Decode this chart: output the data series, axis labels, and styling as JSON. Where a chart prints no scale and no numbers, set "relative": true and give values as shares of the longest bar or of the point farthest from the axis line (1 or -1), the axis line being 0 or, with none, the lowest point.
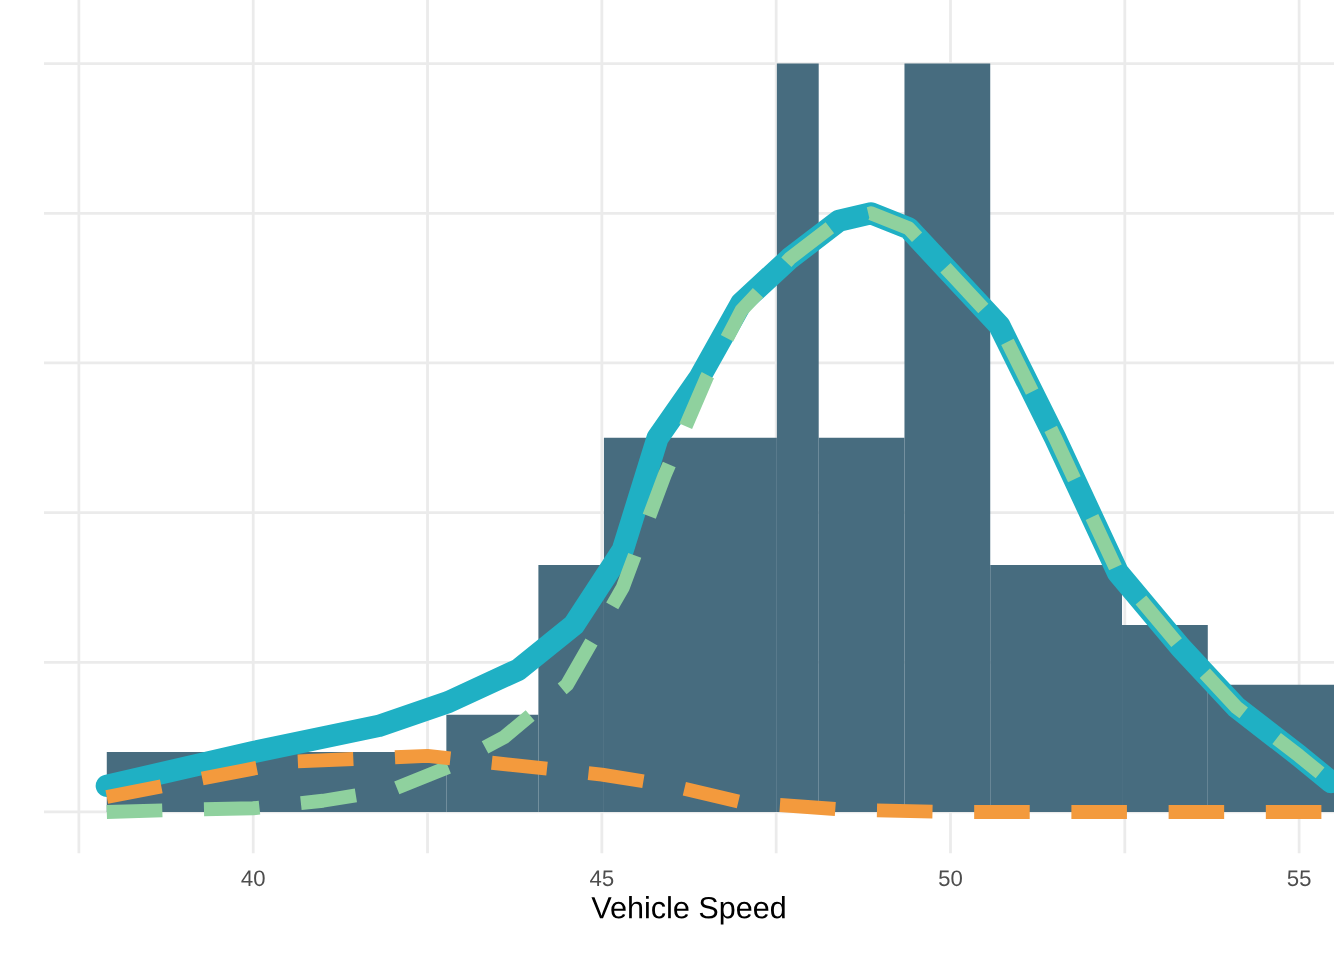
{
  "chart_data": {
    "type": "histogram",
    "relative": true,
    "xlabel": "Vehicle Speed",
    "bins": [
      37.9,
      42.77,
      44.09,
      45.03,
      47.51,
      48.11,
      49.34,
      50.57,
      52.46,
      53.69,
      55.5
    ],
    "values": [
      0.08,
      0.13,
      0.33,
      0.5,
      1,
      0.5,
      1,
      0.33,
      0.25,
      0.17
    ],
    "color": "#476c7f",
    "xlim": [
      37.0,
      55.5
    ],
    "xticks": [
      {
        "value": 37.5,
        "label": null
      },
      40,
      {
        "value": 42.5,
        "label": null
      },
      45,
      {
        "value": 47.5,
        "label": null
      },
      50,
      {
        "value": 52.5,
        "label": null
      },
      55
    ],
    "grid": true,
    "series": [
      {
        "type": "line",
        "color": "#1fb0c4",
        "line_style": "solid",
        "x": [
          37.9,
          40,
          41.8,
          42.8,
          43.8,
          44.6,
          45.3,
          45.8,
          46.4,
          47.0,
          47.7,
          48.4,
          48.86,
          49.4,
          50.1,
          50.7,
          51.5,
          52.4,
          53.3,
          54.1,
          55.0,
          55.46
        ],
        "values": [
          0.035,
          0.08,
          0.115,
          0.147,
          0.19,
          0.25,
          0.35,
          0.5,
          0.58,
          0.68,
          0.74,
          0.79,
          0.8,
          0.78,
          0.71,
          0.65,
          0.5,
          0.32,
          0.22,
          0.14,
          0.075,
          0.04
        ]
      },
      {
        "type": "line",
        "color": "#8fd19e",
        "line_style": "dashed",
        "x": [
          37.9,
          39,
          40,
          41,
          42,
          42.8,
          43.6,
          44.5,
          45.3,
          45.9,
          46.5,
          47.0,
          47.7,
          48.4,
          48.86,
          49.4,
          50.1,
          50.7,
          51.5,
          52.4,
          53.3,
          54.1,
          55.0,
          55.46
        ],
        "values": [
          0.0,
          0.003,
          0.005,
          0.015,
          0.03,
          0.06,
          0.1,
          0.17,
          0.3,
          0.45,
          0.58,
          0.67,
          0.74,
          0.79,
          0.8,
          0.78,
          0.71,
          0.65,
          0.5,
          0.32,
          0.22,
          0.14,
          0.075,
          0.04
        ]
      },
      {
        "type": "line",
        "color": "#f39a3d",
        "line_style": "dashed",
        "x": [
          37.9,
          40.5,
          42.5,
          43.3,
          45,
          46,
          47,
          48.5,
          50,
          55.46
        ],
        "values": [
          0.02,
          0.067,
          0.075,
          0.067,
          0.05,
          0.035,
          0.013,
          0.003,
          0,
          0
        ]
      }
    ]
  }
}
